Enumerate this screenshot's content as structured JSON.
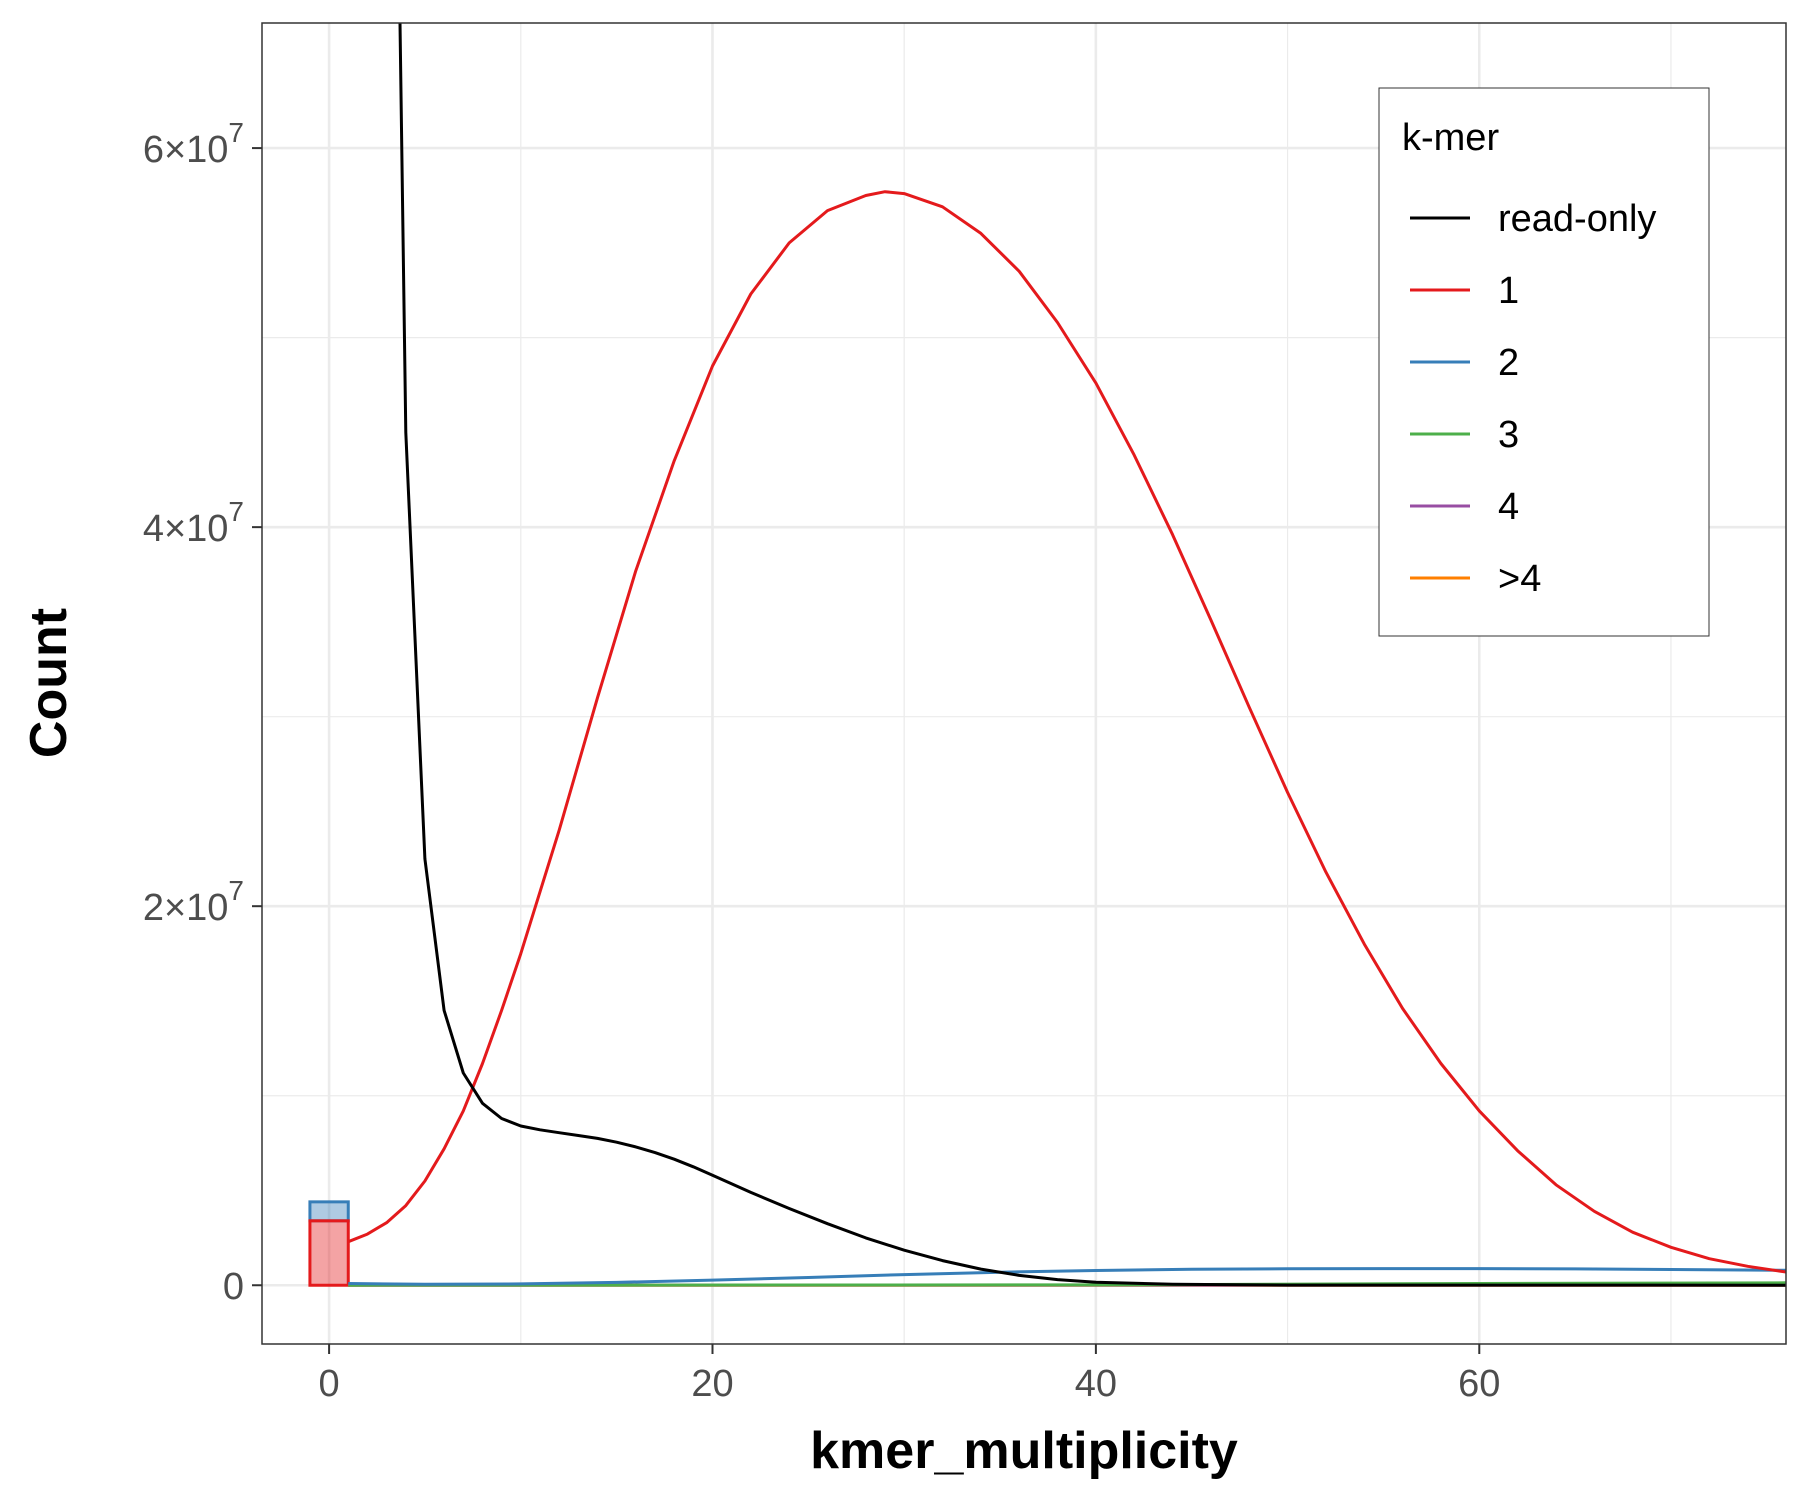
{
  "chart_data": {
    "type": "line",
    "xlabel": "kmer_multiplicity",
    "ylabel": "Count",
    "xlim": [
      -3.5,
      76
    ],
    "ylim": [
      -3100000,
      66600000
    ],
    "x_ticks": [
      0,
      20,
      40,
      60
    ],
    "x_tick_labels": [
      "0",
      "20",
      "40",
      "60"
    ],
    "y_ticks": [
      0,
      20000000,
      40000000,
      60000000
    ],
    "y_tick_labels": [
      {
        "base": "0",
        "exp": ""
      },
      {
        "base": "2×10",
        "exp": "7"
      },
      {
        "base": "4×10",
        "exp": "7"
      },
      {
        "base": "6×10",
        "exp": "7"
      }
    ],
    "grid": true,
    "legend": {
      "title": "k-mer",
      "position": "top-right",
      "items": [
        {
          "label": "read-only",
          "color": "#000000"
        },
        {
          "label": "1",
          "color": "#e41a1c"
        },
        {
          "label": "2",
          "color": "#377eb8"
        },
        {
          "label": "3",
          "color": "#4daf4a"
        },
        {
          "label": "4",
          "color": "#984ea3"
        },
        {
          "label": ">4",
          "color": "#ff7f00"
        }
      ]
    },
    "bars": [
      {
        "series": "2",
        "x": 0,
        "width": 2,
        "y0": 3400000,
        "y1": 4400000,
        "color": "#377eb8"
      },
      {
        "series": "1",
        "x": 0,
        "width": 2,
        "y0": 0,
        "y1": 3400000,
        "color": "#e41a1c"
      }
    ],
    "series": [
      {
        "name": "read-only",
        "color": "#000000",
        "points": [
          [
            3.7,
            66600000
          ],
          [
            4,
            45000000
          ],
          [
            5,
            22500000
          ],
          [
            6,
            14500000
          ],
          [
            7,
            11200000
          ],
          [
            8,
            9600000
          ],
          [
            9,
            8800000
          ],
          [
            10,
            8400000
          ],
          [
            11,
            8200000
          ],
          [
            12,
            8050000
          ],
          [
            13,
            7900000
          ],
          [
            14,
            7750000
          ],
          [
            15,
            7550000
          ],
          [
            16,
            7300000
          ],
          [
            17,
            7000000
          ],
          [
            18,
            6650000
          ],
          [
            19,
            6250000
          ],
          [
            20,
            5800000
          ],
          [
            22,
            4900000
          ],
          [
            24,
            4050000
          ],
          [
            26,
            3250000
          ],
          [
            28,
            2500000
          ],
          [
            30,
            1850000
          ],
          [
            32,
            1300000
          ],
          [
            34,
            850000
          ],
          [
            36,
            520000
          ],
          [
            38,
            300000
          ],
          [
            40,
            160000
          ],
          [
            44,
            50000
          ],
          [
            50,
            10000
          ],
          [
            76,
            0
          ]
        ]
      },
      {
        "name": "1",
        "color": "#e41a1c",
        "points": [
          [
            1,
            2300000
          ],
          [
            2,
            2700000
          ],
          [
            3,
            3300000
          ],
          [
            4,
            4200000
          ],
          [
            5,
            5500000
          ],
          [
            6,
            7200000
          ],
          [
            7,
            9200000
          ],
          [
            8,
            11700000
          ],
          [
            9,
            14500000
          ],
          [
            10,
            17500000
          ],
          [
            12,
            24000000
          ],
          [
            14,
            31000000
          ],
          [
            16,
            37700000
          ],
          [
            18,
            43500000
          ],
          [
            20,
            48500000
          ],
          [
            22,
            52300000
          ],
          [
            24,
            55000000
          ],
          [
            26,
            56700000
          ],
          [
            28,
            57500000
          ],
          [
            29,
            57700000
          ],
          [
            30,
            57600000
          ],
          [
            32,
            56900000
          ],
          [
            34,
            55500000
          ],
          [
            36,
            53500000
          ],
          [
            38,
            50800000
          ],
          [
            40,
            47600000
          ],
          [
            42,
            43800000
          ],
          [
            44,
            39600000
          ],
          [
            46,
            35100000
          ],
          [
            48,
            30500000
          ],
          [
            50,
            26000000
          ],
          [
            52,
            21800000
          ],
          [
            54,
            18000000
          ],
          [
            56,
            14600000
          ],
          [
            58,
            11700000
          ],
          [
            60,
            9200000
          ],
          [
            62,
            7100000
          ],
          [
            64,
            5300000
          ],
          [
            66,
            3900000
          ],
          [
            68,
            2800000
          ],
          [
            70,
            2000000
          ],
          [
            72,
            1400000
          ],
          [
            74,
            1000000
          ],
          [
            76,
            700000
          ]
        ]
      },
      {
        "name": "2",
        "color": "#377eb8",
        "points": [
          [
            1,
            90000
          ],
          [
            5,
            50000
          ],
          [
            10,
            70000
          ],
          [
            15,
            150000
          ],
          [
            20,
            270000
          ],
          [
            25,
            410000
          ],
          [
            30,
            560000
          ],
          [
            35,
            690000
          ],
          [
            40,
            780000
          ],
          [
            45,
            840000
          ],
          [
            50,
            870000
          ],
          [
            55,
            880000
          ],
          [
            60,
            880000
          ],
          [
            65,
            860000
          ],
          [
            70,
            830000
          ],
          [
            76,
            790000
          ]
        ]
      },
      {
        "name": "3",
        "color": "#4daf4a",
        "points": [
          [
            1,
            0
          ],
          [
            40,
            20000
          ],
          [
            60,
            90000
          ],
          [
            76,
            130000
          ]
        ]
      },
      {
        "name": "4",
        "color": "#984ea3",
        "points": [
          [
            1,
            0
          ],
          [
            76,
            10000
          ]
        ]
      },
      {
        "name": ">4",
        "color": "#ff7f00",
        "points": [
          [
            1,
            0
          ],
          [
            76,
            0
          ]
        ]
      }
    ]
  }
}
